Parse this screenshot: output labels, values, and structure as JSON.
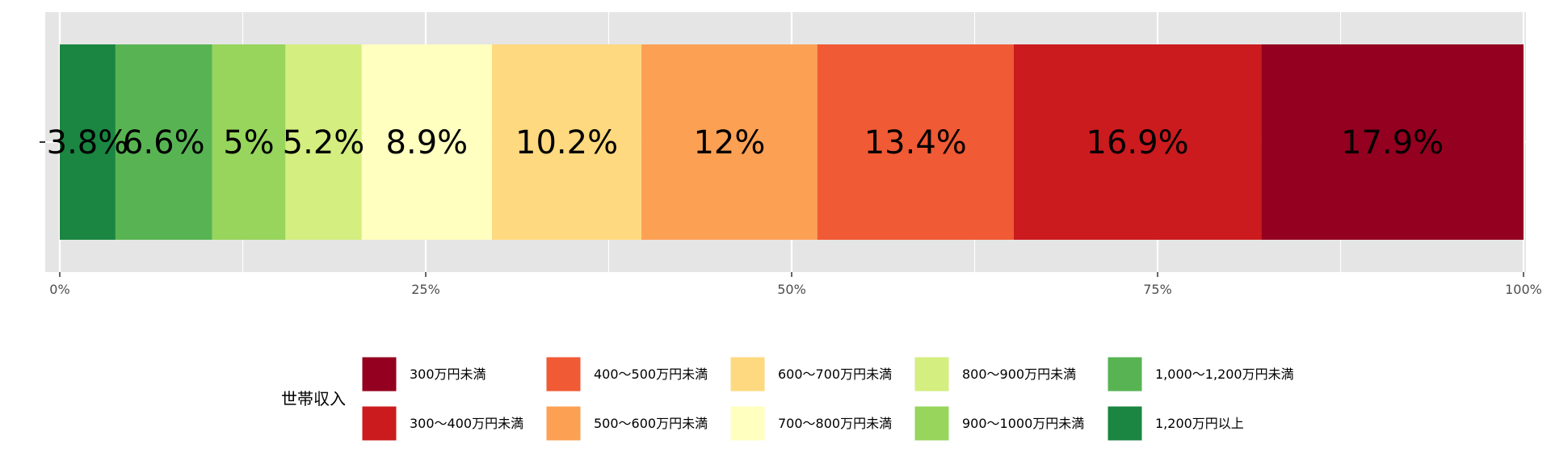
{
  "chart_data": {
    "type": "bar",
    "orientation": "horizontal",
    "stacked": "100%",
    "title": "",
    "xlabel": "",
    "ylabel": "",
    "xlim": [
      0,
      100
    ],
    "x_ticks": [
      "0%",
      "25%",
      "50%",
      "75%",
      "100%"
    ],
    "grid": true,
    "legend": {
      "title": "世帯収入",
      "position": "bottom"
    },
    "series": [
      {
        "name": "1,200万円以上",
        "value": 3.8,
        "label": "3.8%",
        "color": "#1a8641"
      },
      {
        "name": "1,000〜1,200万円未満",
        "value": 6.6,
        "label": "6.6%",
        "color": "#58b453"
      },
      {
        "name": "900〜1000万円未満",
        "value": 5.0,
        "label": "5%",
        "color": "#97d55d"
      },
      {
        "name": "800〜900万円未満",
        "value": 5.2,
        "label": "5.2%",
        "color": "#d4ee80"
      },
      {
        "name": "700〜800万円未満",
        "value": 8.9,
        "label": "8.9%",
        "color": "#ffffbf"
      },
      {
        "name": "600〜700万円未満",
        "value": 10.2,
        "label": "10.2%",
        "color": "#fed97f"
      },
      {
        "name": "500〜600万円未満",
        "value": 12.0,
        "label": "12%",
        "color": "#fca054"
      },
      {
        "name": "400〜500万円未満",
        "value": 13.4,
        "label": "13.4%",
        "color": "#f05a35"
      },
      {
        "name": "300〜400万円未満",
        "value": 16.9,
        "label": "16.9%",
        "color": "#cb1b1e"
      },
      {
        "name": "300万円未満",
        "value": 17.9,
        "label": "17.9%",
        "color": "#94001f"
      }
    ],
    "legend_order": [
      "300万円未満",
      "300〜400万円未満",
      "400〜500万円未満",
      "500〜600万円未満",
      "600〜700万円未満",
      "700〜800万円未満",
      "800〜900万円未満",
      "900〜1000万円未満",
      "1,000〜1,200万円未満",
      "1,200万円以上"
    ]
  },
  "colors": {
    "panel_background": "#e5e5e5",
    "grid_line": "#ffffff",
    "tick_text": "#4d4d4d"
  }
}
